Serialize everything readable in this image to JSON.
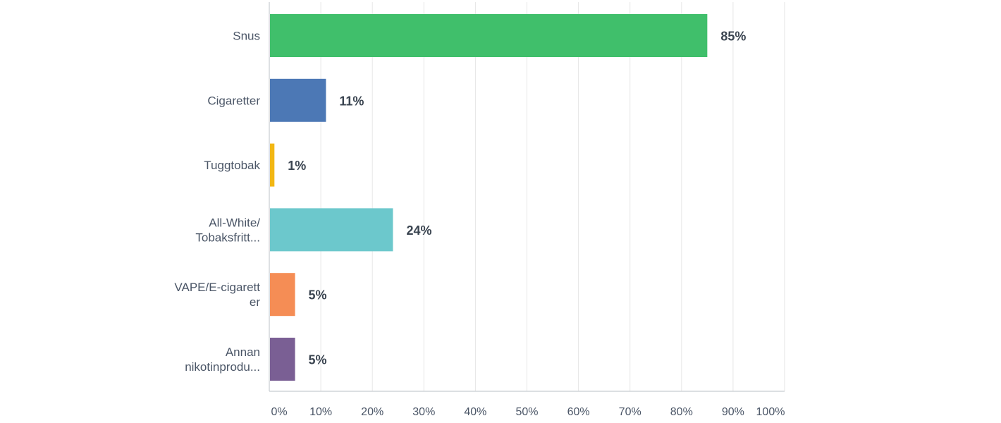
{
  "chart_data": {
    "type": "bar",
    "orientation": "horizontal",
    "categories": [
      [
        "Snus"
      ],
      [
        "Cigaretter"
      ],
      [
        "Tuggtobak"
      ],
      [
        "All-White/",
        "Tobaksfritt..."
      ],
      [
        "VAPE/E-cigarett",
        "er"
      ],
      [
        "Annan",
        "nikotinprodu..."
      ]
    ],
    "values": [
      85,
      11,
      1,
      24,
      5,
      5
    ],
    "value_labels": [
      "85%",
      "11%",
      "1%",
      "24%",
      "5%",
      "5%"
    ],
    "colors": [
      "#40bf6b",
      "#4c78b5",
      "#f2b714",
      "#6cc8cc",
      "#f58d55",
      "#7a5f94"
    ],
    "xlim": [
      0,
      100
    ],
    "x_ticks": [
      0,
      10,
      20,
      30,
      40,
      50,
      60,
      70,
      80,
      90,
      100
    ],
    "x_tick_labels": [
      "0%",
      "10%",
      "20%",
      "30%",
      "40%",
      "50%",
      "60%",
      "70%",
      "80%",
      "90%",
      "100%"
    ],
    "grid": true,
    "title": "",
    "xlabel": "",
    "ylabel": ""
  }
}
